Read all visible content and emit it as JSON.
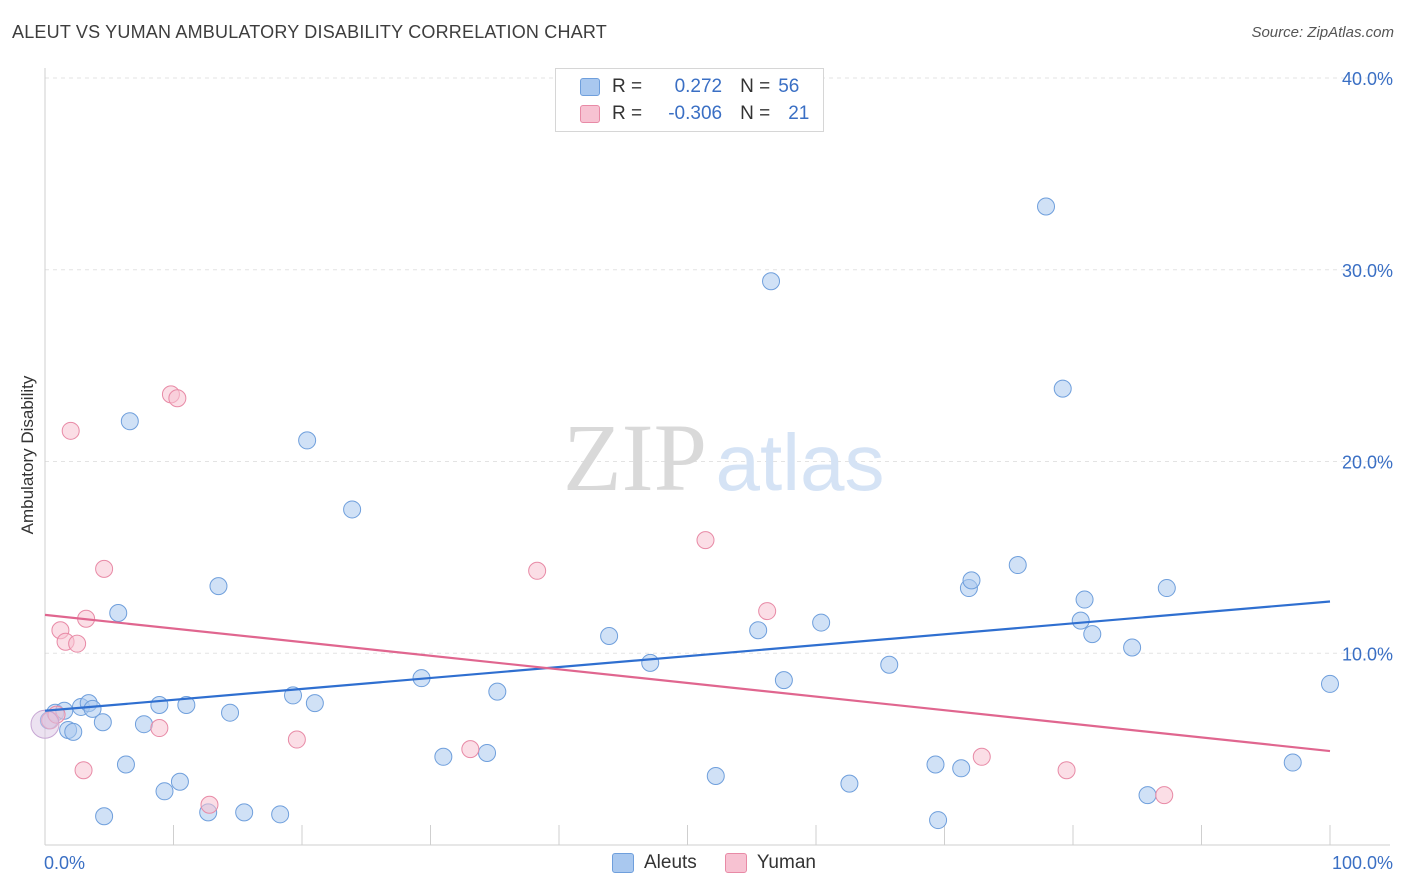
{
  "header": {
    "title": "ALEUT VS YUMAN AMBULATORY DISABILITY CORRELATION CHART",
    "source": "Source: ZipAtlas.com"
  },
  "legend": {
    "rows": [
      {
        "r_label": "R =",
        "r_value": "0.272",
        "n_label": "N =",
        "n_value": "56",
        "color": "#a9c8ef",
        "border": "#6f9fdc"
      },
      {
        "r_label": "R =",
        "r_value": "-0.306",
        "n_label": "N =",
        "n_value": "21",
        "color": "#f7c2d2",
        "border": "#e88aa6"
      }
    ]
  },
  "watermark": {
    "part1": "ZIP",
    "part2": "atlas"
  },
  "chart_data": {
    "type": "scatter",
    "ylabel": "Ambulatory Disability",
    "xlim": [
      0,
      100
    ],
    "ylim": [
      0,
      40
    ],
    "x_tick_labels": [
      "0.0%",
      "100.0%"
    ],
    "y_ticks": [
      10,
      20,
      30,
      40
    ],
    "y_tick_labels": [
      "10.0%",
      "20.0%",
      "30.0%",
      "40.0%"
    ],
    "grid": true,
    "series": [
      {
        "name": "Aleuts",
        "color": "#a9c8ef",
        "stroke": "#6f9fdc",
        "line_color": "#2f6fd0",
        "trend": [
          [
            0,
            7.0
          ],
          [
            100,
            12.7
          ]
        ],
        "points": [
          [
            0.3,
            6.5
          ],
          [
            0.8,
            6.9
          ],
          [
            1.5,
            7.0
          ],
          [
            1.8,
            6.0
          ],
          [
            2.2,
            5.9
          ],
          [
            2.8,
            7.2
          ],
          [
            3.4,
            7.4
          ],
          [
            3.7,
            7.1
          ],
          [
            4.5,
            6.4
          ],
          [
            4.6,
            1.5
          ],
          [
            5.7,
            12.1
          ],
          [
            6.3,
            4.2
          ],
          [
            6.6,
            22.1
          ],
          [
            7.7,
            6.3
          ],
          [
            8.9,
            7.3
          ],
          [
            9.3,
            2.8
          ],
          [
            10.5,
            3.3
          ],
          [
            11.0,
            7.3
          ],
          [
            12.7,
            1.7
          ],
          [
            13.5,
            13.5
          ],
          [
            14.4,
            6.9
          ],
          [
            15.5,
            1.7
          ],
          [
            18.3,
            1.6
          ],
          [
            19.3,
            7.8
          ],
          [
            20.4,
            21.1
          ],
          [
            21.0,
            7.4
          ],
          [
            23.9,
            17.5
          ],
          [
            29.3,
            8.7
          ],
          [
            31.0,
            4.6
          ],
          [
            34.4,
            4.8
          ],
          [
            35.2,
            8.0
          ],
          [
            43.9,
            10.9
          ],
          [
            47.1,
            9.5
          ],
          [
            52.2,
            3.6
          ],
          [
            55.5,
            11.2
          ],
          [
            56.5,
            29.4
          ],
          [
            57.5,
            8.6
          ],
          [
            60.4,
            11.6
          ],
          [
            62.6,
            3.2
          ],
          [
            65.7,
            9.4
          ],
          [
            69.3,
            4.2
          ],
          [
            69.5,
            1.3
          ],
          [
            71.3,
            4.0
          ],
          [
            71.9,
            13.4
          ],
          [
            72.1,
            13.8
          ],
          [
            75.7,
            14.6
          ],
          [
            77.9,
            33.3
          ],
          [
            79.2,
            23.8
          ],
          [
            80.6,
            11.7
          ],
          [
            80.9,
            12.8
          ],
          [
            81.5,
            11.0
          ],
          [
            84.6,
            10.3
          ],
          [
            85.8,
            2.6
          ],
          [
            87.3,
            13.4
          ],
          [
            97.1,
            4.3
          ],
          [
            100.0,
            8.4
          ]
        ]
      },
      {
        "name": "Yuman",
        "color": "#f7c2d2",
        "stroke": "#e88aa6",
        "line_color": "#e0668f",
        "trend": [
          [
            0,
            12.0
          ],
          [
            100,
            4.9
          ]
        ],
        "points": [
          [
            0.4,
            6.5
          ],
          [
            0.9,
            6.8
          ],
          [
            1.2,
            11.2
          ],
          [
            1.6,
            10.6
          ],
          [
            2.0,
            21.6
          ],
          [
            2.5,
            10.5
          ],
          [
            3.0,
            3.9
          ],
          [
            3.2,
            11.8
          ],
          [
            4.6,
            14.4
          ],
          [
            8.9,
            6.1
          ],
          [
            9.8,
            23.5
          ],
          [
            10.3,
            23.3
          ],
          [
            12.8,
            2.1
          ],
          [
            19.6,
            5.5
          ],
          [
            33.1,
            5.0
          ],
          [
            38.3,
            14.3
          ],
          [
            51.4,
            15.9
          ],
          [
            56.2,
            12.2
          ],
          [
            72.9,
            4.6
          ],
          [
            79.5,
            3.9
          ],
          [
            87.1,
            2.6
          ]
        ]
      }
    ]
  }
}
